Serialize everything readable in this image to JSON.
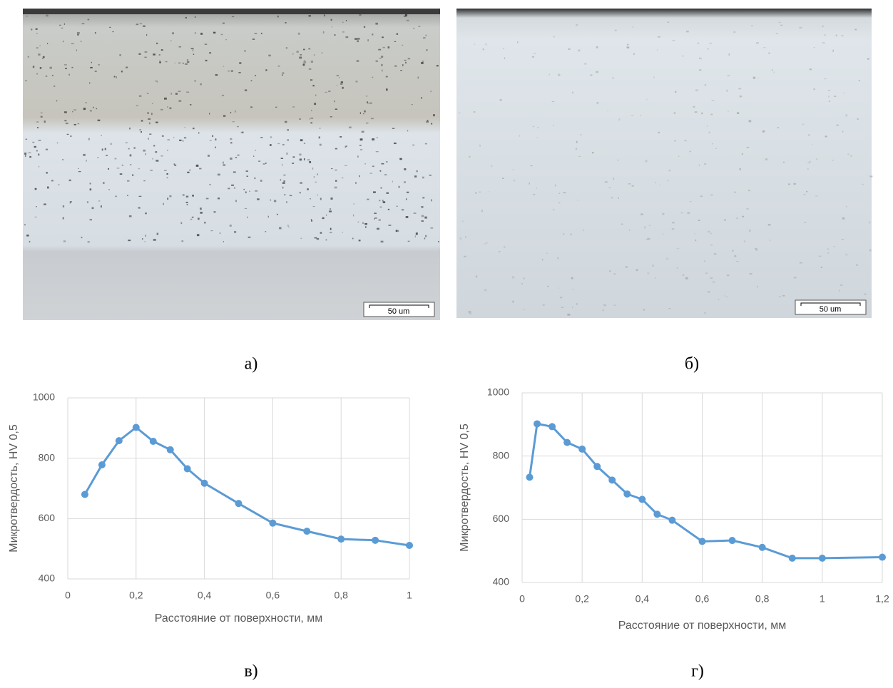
{
  "images": [
    {
      "scale_bar": "50 um"
    },
    {
      "scale_bar": "50 um"
    }
  ],
  "captions": [
    "а)",
    "б)",
    "в)",
    "г)"
  ],
  "chart_data": [
    {
      "type": "line",
      "x_label": "Расстояние от поверхности, мм",
      "y_label": "Микротвердость, HV 0,5",
      "x": [
        0.05,
        0.1,
        0.15,
        0.2,
        0.25,
        0.3,
        0.35,
        0.4,
        0.5,
        0.6,
        0.7,
        0.8,
        0.9,
        1
      ],
      "series": [
        {
          "color": "#5b9bd5",
          "values": [
            680,
            778,
            858,
            902,
            856,
            828,
            765,
            717,
            650,
            585,
            558,
            532,
            528,
            511
          ]
        }
      ],
      "xlim": [
        0,
        1
      ],
      "xticks": [
        0,
        {
          "value": 0.2,
          "label": "0,2"
        },
        {
          "value": 0.4,
          "label": "0,4"
        },
        {
          "value": 0.6,
          "label": "0,6"
        },
        {
          "value": 0.8,
          "label": "0,8"
        },
        1
      ],
      "ylim": [
        400,
        1000
      ],
      "yticks": [
        400,
        600,
        800,
        1000
      ],
      "grid": true
    },
    {
      "type": "line",
      "x_label": "Расстояние от поверхности, мм",
      "y_label": "Микротвердость, HV 0,5",
      "x": [
        0.025,
        0.05,
        0.1,
        0.15,
        0.2,
        0.25,
        0.3,
        0.35,
        0.4,
        0.45,
        0.5,
        0.6,
        0.7,
        0.8,
        0.9,
        1,
        1.2
      ],
      "series": [
        {
          "color": "#5b9bd5",
          "values": [
            733,
            902,
            893,
            843,
            822,
            767,
            724,
            680,
            663,
            616,
            597,
            530,
            533,
            511,
            477,
            477,
            480
          ]
        }
      ],
      "xlim": [
        0,
        1.2
      ],
      "xticks": [
        0,
        {
          "value": 0.2,
          "label": "0,2"
        },
        {
          "value": 0.4,
          "label": "0,4"
        },
        {
          "value": 0.6,
          "label": "0,6"
        },
        {
          "value": 0.8,
          "label": "0,8"
        },
        1,
        {
          "value": 1.2,
          "label": "1,2"
        }
      ],
      "ylim": [
        400,
        1000
      ],
      "yticks": [
        400,
        600,
        800,
        1000
      ],
      "grid": true
    }
  ]
}
